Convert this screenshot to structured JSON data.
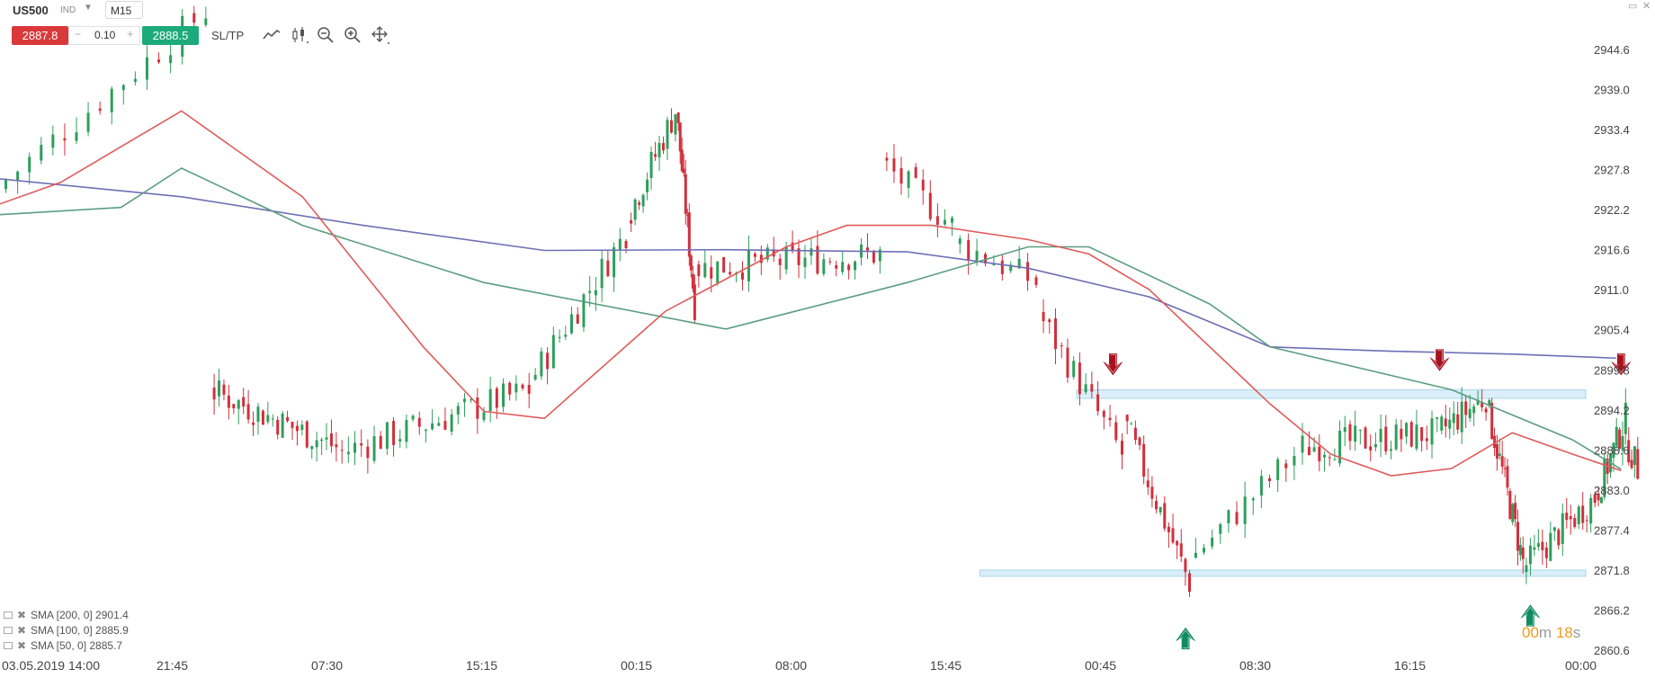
{
  "toolbar": {
    "symbol": "US500",
    "symbol_type": "IND",
    "timeframe": "M15",
    "sell_price": "2887.8",
    "quantity": "0.10",
    "buy_price": "2888.5",
    "sltp_label": "SL/TP",
    "qty_minus": "−",
    "qty_plus": "+",
    "tools": [
      "line-chart-icon",
      "candlestick-icon",
      "zoom-out-icon",
      "zoom-in-icon",
      "crosshair-icon"
    ]
  },
  "window": {
    "minimize": "▭",
    "close": "✕"
  },
  "countdown": {
    "minutes": "00",
    "m_unit": "m",
    "seconds": "18",
    "s_unit": "s"
  },
  "legend": [
    {
      "label": "SMA [200, 0] 2901.4",
      "color": "#6f6fb5"
    },
    {
      "label": "SMA [100, 0] 2885.9",
      "color": "#5a9e80"
    },
    {
      "label": "SMA [50, 0] 2885.7",
      "color": "#e05a5a"
    }
  ],
  "chart_data": {
    "type": "candlestick",
    "ylim": [
      2860.6,
      2950.0
    ],
    "y_ticks": [
      "2944.6",
      "2939.0",
      "2933.4",
      "2927.8",
      "2922.2",
      "2916.6",
      "2911.0",
      "2905.4",
      "2899.8",
      "2894.2",
      "2888.6",
      "2883.0",
      "2877.4",
      "2871.8",
      "2866.2",
      "2860.6"
    ],
    "x_labels": [
      "03.05.2019 14:00",
      "21:45",
      "07:30",
      "15:15",
      "00:15",
      "08:00",
      "15:45",
      "00:45",
      "08:30",
      "16:15",
      "00:00"
    ],
    "colors": {
      "up": "#2e9e5b",
      "down": "#d0303c",
      "sma200": "#6f6fb5",
      "sma100": "#5a9e80",
      "sma50": "#e05a5a",
      "zone": "#cde9f7",
      "zone_border": "#a9d6ee",
      "arrow_down": "#a8121f",
      "arrow_up": "#0f8a60"
    },
    "candle_segments": [
      {
        "count": 18,
        "x0": 0,
        "x1": 0.175,
        "p0": 2925,
        "p1": 2950
      },
      {
        "count": 26,
        "x0": 0.175,
        "x1": 0.28,
        "p0": 2897,
        "p1": 2889
      },
      {
        "count": 30,
        "x0": 0.28,
        "x1": 0.44,
        "p0": 2888,
        "p1": 2897
      },
      {
        "count": 16,
        "x0": 0.44,
        "x1": 0.52,
        "p0": 2898,
        "p1": 2919
      },
      {
        "count": 12,
        "x0": 0.52,
        "x1": 0.56,
        "p0": 2921,
        "p1": 2936
      },
      {
        "count": 10,
        "x0": 0.56,
        "x1": 0.575,
        "p0": 2936,
        "p1": 2909
      },
      {
        "count": 30,
        "x0": 0.575,
        "x1": 0.73,
        "p0": 2914,
        "p1": 2916
      },
      {
        "count": 10,
        "x0": 0.73,
        "x1": 0.79,
        "p0": 2929,
        "p1": 2920
      },
      {
        "count": 10,
        "x0": 0.79,
        "x1": 0.86,
        "p0": 2918,
        "p1": 2912
      },
      {
        "count": 14,
        "x0": 0.86,
        "x1": 0.93,
        "p0": 2908,
        "p1": 2888
      },
      {
        "count": 16,
        "x0": 0.93,
        "x1": 0.985,
        "p0": 2893,
        "p1": 2870
      },
      {
        "count": 14,
        "x0": 0.985,
        "x1": 1.08,
        "p0": 2873,
        "p1": 2889
      },
      {
        "count": 26,
        "x0": 1.08,
        "x1": 1.19,
        "p0": 2889,
        "p1": 2891
      },
      {
        "count": 12,
        "x0": 1.19,
        "x1": 1.23,
        "p0": 2891,
        "p1": 2896
      },
      {
        "count": 14,
        "x0": 1.23,
        "x1": 1.26,
        "p0": 2895,
        "p1": 2873
      },
      {
        "count": 18,
        "x0": 1.26,
        "x1": 1.32,
        "p0": 2872,
        "p1": 2882
      },
      {
        "count": 10,
        "x0": 1.32,
        "x1": 1.345,
        "p0": 2882,
        "p1": 2893
      },
      {
        "count": 4,
        "x0": 1.345,
        "x1": 1.355,
        "p0": 2890,
        "p1": 2886
      }
    ],
    "sma200": [
      [
        0,
        2926.5
      ],
      [
        0.15,
        2924
      ],
      [
        0.3,
        2920
      ],
      [
        0.45,
        2916.5
      ],
      [
        0.6,
        2916.6
      ],
      [
        0.75,
        2916.3
      ],
      [
        0.85,
        2914
      ],
      [
        0.95,
        2910
      ],
      [
        1.05,
        2903
      ],
      [
        1.15,
        2902.4
      ],
      [
        1.25,
        2902
      ],
      [
        1.34,
        2901.4
      ]
    ],
    "sma100": [
      [
        0,
        2921.5
      ],
      [
        0.1,
        2922.5
      ],
      [
        0.15,
        2928
      ],
      [
        0.25,
        2920
      ],
      [
        0.4,
        2912
      ],
      [
        0.6,
        2905.5
      ],
      [
        0.75,
        2912
      ],
      [
        0.85,
        2917
      ],
      [
        0.9,
        2917
      ],
      [
        1.0,
        2909
      ],
      [
        1.05,
        2903
      ],
      [
        1.2,
        2897
      ],
      [
        1.3,
        2890
      ],
      [
        1.34,
        2885.9
      ]
    ],
    "sma50": [
      [
        0,
        2923
      ],
      [
        0.05,
        2926
      ],
      [
        0.15,
        2936
      ],
      [
        0.25,
        2924
      ],
      [
        0.35,
        2903
      ],
      [
        0.4,
        2894
      ],
      [
        0.45,
        2893
      ],
      [
        0.55,
        2908
      ],
      [
        0.65,
        2917
      ],
      [
        0.7,
        2920
      ],
      [
        0.77,
        2920
      ],
      [
        0.85,
        2918
      ],
      [
        0.9,
        2916
      ],
      [
        0.95,
        2911
      ],
      [
        1.05,
        2895
      ],
      [
        1.1,
        2888
      ],
      [
        1.15,
        2885
      ],
      [
        1.2,
        2886
      ],
      [
        1.25,
        2891
      ],
      [
        1.3,
        2888
      ],
      [
        1.34,
        2885.7
      ]
    ],
    "zones": [
      {
        "low": 2895.8,
        "high": 2897.0,
        "x0": 0.89,
        "x1": 1.5
      },
      {
        "low": 2871.0,
        "high": 2871.8,
        "x0": 0.81,
        "x1": 1.5
      }
    ],
    "arrows": [
      {
        "dir": "down",
        "x": 0.92,
        "price": 2900.4
      },
      {
        "dir": "down",
        "x": 1.19,
        "price": 2901.0
      },
      {
        "dir": "down",
        "x": 1.34,
        "price": 2900.4
      },
      {
        "dir": "up",
        "x": 0.98,
        "price": 2862.4
      },
      {
        "dir": "up",
        "x": 1.265,
        "price": 2865.6
      }
    ]
  }
}
